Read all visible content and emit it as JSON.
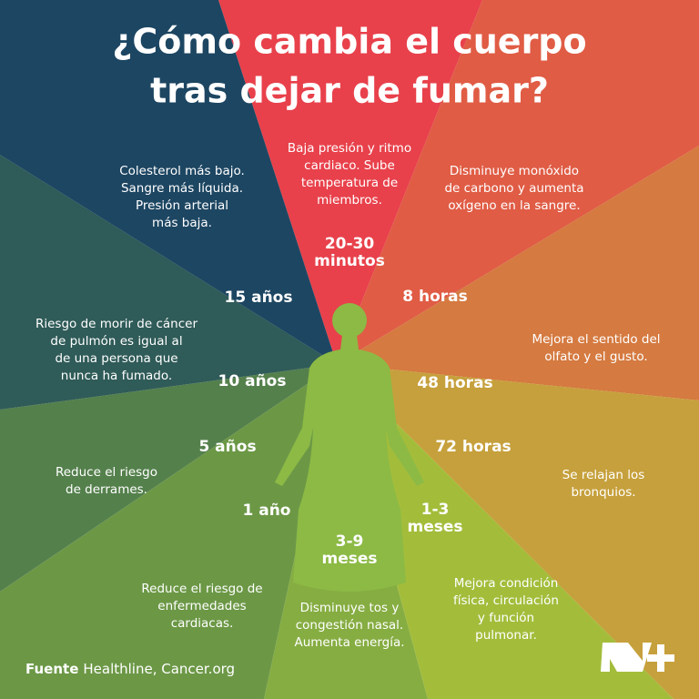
{
  "title": [
    "¿Cómo cambia el cuerpo",
    "tras dejar de fumar?"
  ],
  "stages": [
    {
      "time": [
        "20-30",
        "minutos"
      ],
      "text": [
        "Baja presión y ritmo",
        "cardiaco. Sube",
        "temperatura de",
        "miembros."
      ]
    },
    {
      "time": [
        "8 horas"
      ],
      "text": [
        "Disminuye monóxido",
        "de carbono y aumenta",
        "oxígeno en la sangre."
      ]
    },
    {
      "time": [
        "48 horas"
      ],
      "text": [
        "Mejora el sentido del",
        "olfato y el gusto."
      ]
    },
    {
      "time": [
        "72 horas"
      ],
      "text": [
        "Se relajan los",
        "bronquios."
      ]
    },
    {
      "time": [
        "1-3",
        "meses"
      ],
      "text": [
        "Mejora condición",
        "física, circulación",
        "y función",
        "pulmonar."
      ]
    },
    {
      "time": [
        "3-9",
        "meses"
      ],
      "text": [
        "Disminuye tos y",
        "congestión nasal.",
        "Aumenta energía."
      ]
    },
    {
      "time": [
        "1 año"
      ],
      "text": [
        "Reduce el riesgo de",
        "enfermedades",
        "cardiacas."
      ]
    },
    {
      "time": [
        "5 años"
      ],
      "text": [
        "Reduce el riesgo",
        "de derrames."
      ]
    },
    {
      "time": [
        "10 años"
      ],
      "text": [
        "Riesgo de morir de cáncer",
        "de pulmón es igual al",
        "de una persona que",
        "nunca ha fumado."
      ]
    },
    {
      "time": [
        "15 años"
      ],
      "text": [
        "Colesterol más bajo.",
        "Sangre más líquida.",
        "Presión arterial",
        "más baja."
      ]
    }
  ],
  "source": {
    "label": "Fuente",
    "text": "Healthline, Cancer.org"
  }
}
